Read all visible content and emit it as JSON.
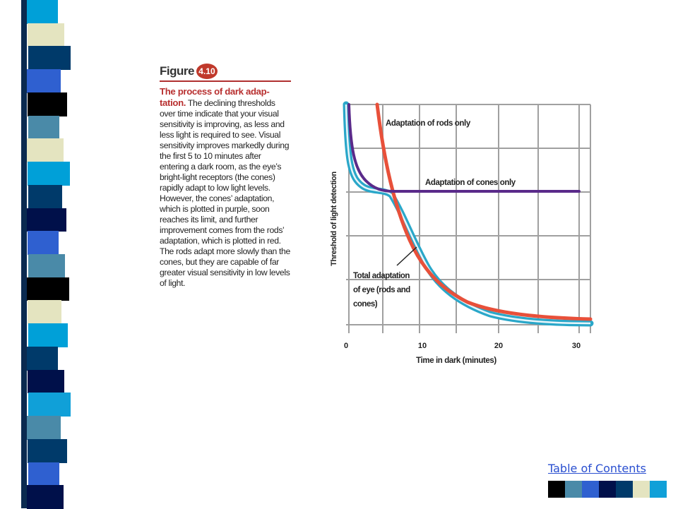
{
  "figure": {
    "label": "Figure",
    "number": "4.10",
    "caption_title": "The process of dark adap-tation.",
    "caption_body": " The declining thresholds over time indicate that your visual sensitivity is improving, as less and less light is required to see. Visual sensitivity improves markedly during the first 5 to 10 minutes after entering a dark room, as the eye’s bright-light receptors (the cones) rapidly adapt to low light levels. However, the cones’ adaptation, which is plotted in purple, soon reaches its limit, and further improvement comes from the rods’ adaptation, which is plotted in red. The rods adapt more slowly than the cones, but they are capable of far greater visual sensitivity in low levels of light."
  },
  "graph": {
    "ylabel": "Threshold of light detection",
    "xlabel": "Time in dark (minutes)",
    "xticks": [
      "0",
      "10",
      "20",
      "30"
    ],
    "label_rods": "Adaptation of rods only",
    "label_cones": "Adaptation of cones only",
    "label_total_line1": "Total adaptation",
    "label_total_line2": "of eye (rods and",
    "label_total_line3": "cones)",
    "colors": {
      "rods": "#e8503a",
      "cones": "#5a2a8a",
      "total": "#2aa7c9",
      "grid": "#9a9a9a"
    }
  },
  "nav": {
    "toc_label": "Table of Contents",
    "button_colors": [
      "#000000",
      "#4a8aa8",
      "#2f60d0",
      "#00104a",
      "#003a6a",
      "#e4e4c0",
      "#10a0d8"
    ]
  },
  "decor": {
    "stripe_colors": [
      "#00a0d8",
      "#e4e4c0",
      "#003a6a",
      "#2f60d0",
      "#000000",
      "#4a8aa8",
      "#e4e4c0",
      "#00a0d8",
      "#003a6a",
      "#00104a",
      "#2f60d0",
      "#4a8aa8",
      "#000000",
      "#e4e4c0",
      "#00a0d8",
      "#003a6a",
      "#00104a",
      "#10a0d8",
      "#4a8aa8",
      "#003a6a",
      "#2f60d0",
      "#00104a"
    ]
  }
}
